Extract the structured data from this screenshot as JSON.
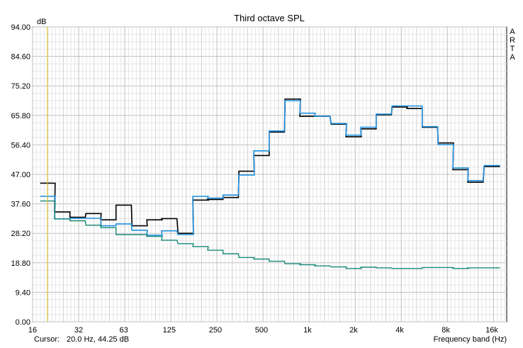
{
  "chart_data": {
    "type": "line",
    "title": "Third octave SPL",
    "ylabel": "dB",
    "xlabel": "Frequency band (Hz)",
    "watermark": [
      "A",
      "R",
      "T",
      "A"
    ],
    "x_scale": "log2",
    "xlim": [
      16,
      20000
    ],
    "ylim": [
      0,
      94
    ],
    "y_ticks": [
      "0.00",
      "9.40",
      "18.80",
      "28.20",
      "37.60",
      "47.00",
      "56.40",
      "65.80",
      "75.20",
      "84.60",
      "94.00"
    ],
    "x_ticks": [
      {
        "value": 16,
        "label": "16"
      },
      {
        "value": 32,
        "label": "32"
      },
      {
        "value": 63,
        "label": "63"
      },
      {
        "value": 125,
        "label": "125"
      },
      {
        "value": 250,
        "label": "250"
      },
      {
        "value": 500,
        "label": "500"
      },
      {
        "value": 1000,
        "label": "1k"
      },
      {
        "value": 2000,
        "label": "2k"
      },
      {
        "value": 4000,
        "label": "4k"
      },
      {
        "value": 8000,
        "label": "8k"
      },
      {
        "value": 16000,
        "label": "16k"
      }
    ],
    "grid": true,
    "cursor": {
      "frequency_hz": 20.0,
      "level_db": 44.25,
      "color": "#e8c020"
    },
    "bands_hz": [
      20,
      25,
      31.5,
      40,
      50,
      63,
      80,
      100,
      125,
      160,
      200,
      250,
      315,
      400,
      500,
      630,
      800,
      1000,
      1250,
      1600,
      2000,
      2500,
      3150,
      4000,
      5000,
      6300,
      8000,
      10000,
      12500,
      16000
    ],
    "series": [
      {
        "color": "#000000",
        "values": [
          44.2,
          35.0,
          33.3,
          34.5,
          32.5,
          37.2,
          30.6,
          32.5,
          32.9,
          28.2,
          38.8,
          39.0,
          39.6,
          48.0,
          53.0,
          60.5,
          71.0,
          65.5,
          65.5,
          63.0,
          59.0,
          61.5,
          66.0,
          68.5,
          68.0,
          62.0,
          57.0,
          48.5,
          44.5,
          49.5
        ]
      },
      {
        "color": "#1e90e0",
        "values": [
          40.0,
          32.8,
          33.0,
          33.0,
          30.6,
          31.2,
          29.2,
          27.6,
          29.0,
          27.8,
          40.0,
          39.4,
          40.4,
          46.8,
          54.5,
          60.8,
          70.5,
          66.5,
          65.5,
          63.2,
          59.5,
          62.0,
          66.2,
          68.8,
          68.8,
          62.2,
          56.5,
          49.0,
          45.0,
          49.8
        ]
      },
      {
        "color": "#1a8a7a",
        "values": [
          38.5,
          32.8,
          32.2,
          30.8,
          30.0,
          27.8,
          27.8,
          27.2,
          26.0,
          24.9,
          24.0,
          22.8,
          21.7,
          20.5,
          20.0,
          19.3,
          18.5,
          18.2,
          17.8,
          17.5,
          17.0,
          17.4,
          17.2,
          17.0,
          17.0,
          17.3,
          17.3,
          17.0,
          17.2,
          17.2
        ]
      }
    ]
  },
  "status": {
    "cursor_label": "Cursor:",
    "cursor_value": "20.0 Hz, 44.25 dB",
    "axis_label": "Frequency band (Hz)"
  }
}
